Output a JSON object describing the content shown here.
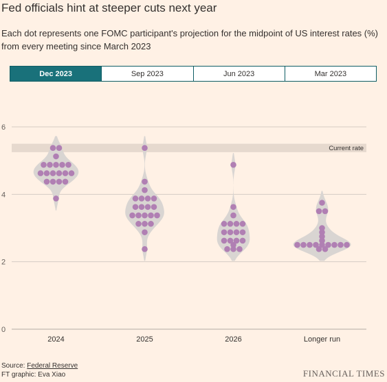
{
  "header": {
    "title": "Fed officials hint at steeper cuts next year",
    "subtitle": "Each dot represents one FOMC participant's projection for the midpoint of US interest rates (%) from every meeting since March 2023"
  },
  "tabs": [
    {
      "label": "Dec 2023",
      "active": true
    },
    {
      "label": "Sep 2023",
      "active": false
    },
    {
      "label": "Jun 2023",
      "active": false
    },
    {
      "label": "Mar 2023",
      "active": false
    }
  ],
  "chart_data": {
    "type": "scatter",
    "variant": "dot plot with violin distribution",
    "title": "",
    "xlabel": "",
    "ylabel": "",
    "ylim": [
      0,
      6
    ],
    "yticks": [
      0,
      2,
      4,
      6
    ],
    "grid": true,
    "categories": [
      "2024",
      "2025",
      "2026",
      "Longer run"
    ],
    "reference_band": {
      "label": "Current rate",
      "range": [
        5.25,
        5.5
      ]
    },
    "series": [
      {
        "category": "2024",
        "points": [
          {
            "y": 5.375,
            "count": 2
          },
          {
            "y": 5.125,
            "count": 1
          },
          {
            "y": 4.875,
            "count": 5
          },
          {
            "y": 4.625,
            "count": 6
          },
          {
            "y": 4.375,
            "count": 4
          },
          {
            "y": 3.875,
            "count": 1
          }
        ]
      },
      {
        "category": "2025",
        "points": [
          {
            "y": 5.375,
            "count": 1
          },
          {
            "y": 4.375,
            "count": 1
          },
          {
            "y": 4.125,
            "count": 1
          },
          {
            "y": 3.875,
            "count": 4
          },
          {
            "y": 3.625,
            "count": 4
          },
          {
            "y": 3.375,
            "count": 5
          },
          {
            "y": 3.125,
            "count": 3
          },
          {
            "y": 2.875,
            "count": 1
          },
          {
            "y": 2.375,
            "count": 1
          }
        ]
      },
      {
        "category": "2026",
        "points": [
          {
            "y": 4.875,
            "count": 1
          },
          {
            "y": 3.625,
            "count": 1
          },
          {
            "y": 3.375,
            "count": 1
          },
          {
            "y": 3.125,
            "count": 4
          },
          {
            "y": 2.875,
            "count": 4
          },
          {
            "y": 2.625,
            "count": 4
          },
          {
            "y": 2.5,
            "count": 1
          },
          {
            "y": 2.375,
            "count": 3
          }
        ]
      },
      {
        "category": "Longer run",
        "points": [
          {
            "y": 3.75,
            "count": 1
          },
          {
            "y": 3.5,
            "count": 2
          },
          {
            "y": 3.0,
            "count": 1
          },
          {
            "y": 2.875,
            "count": 1
          },
          {
            "y": 2.75,
            "count": 1
          },
          {
            "y": 2.625,
            "count": 1
          },
          {
            "y": 2.5,
            "count": 9
          },
          {
            "y": 2.375,
            "count": 2
          }
        ]
      }
    ]
  },
  "colors": {
    "background": "#fff1e5",
    "dot": "#b07fb3",
    "violin": "#d9d5d2",
    "band": "#e6d9ce",
    "grid": "#d4cbc3",
    "tab_active_bg": "#19717a",
    "tab_border": "#0d5c63"
  },
  "footer": {
    "source_prefix": "Source: ",
    "source_link": "Federal Reserve",
    "credit": "FT graphic: Eva Xiao",
    "brand": "FINANCIAL TIMES"
  }
}
